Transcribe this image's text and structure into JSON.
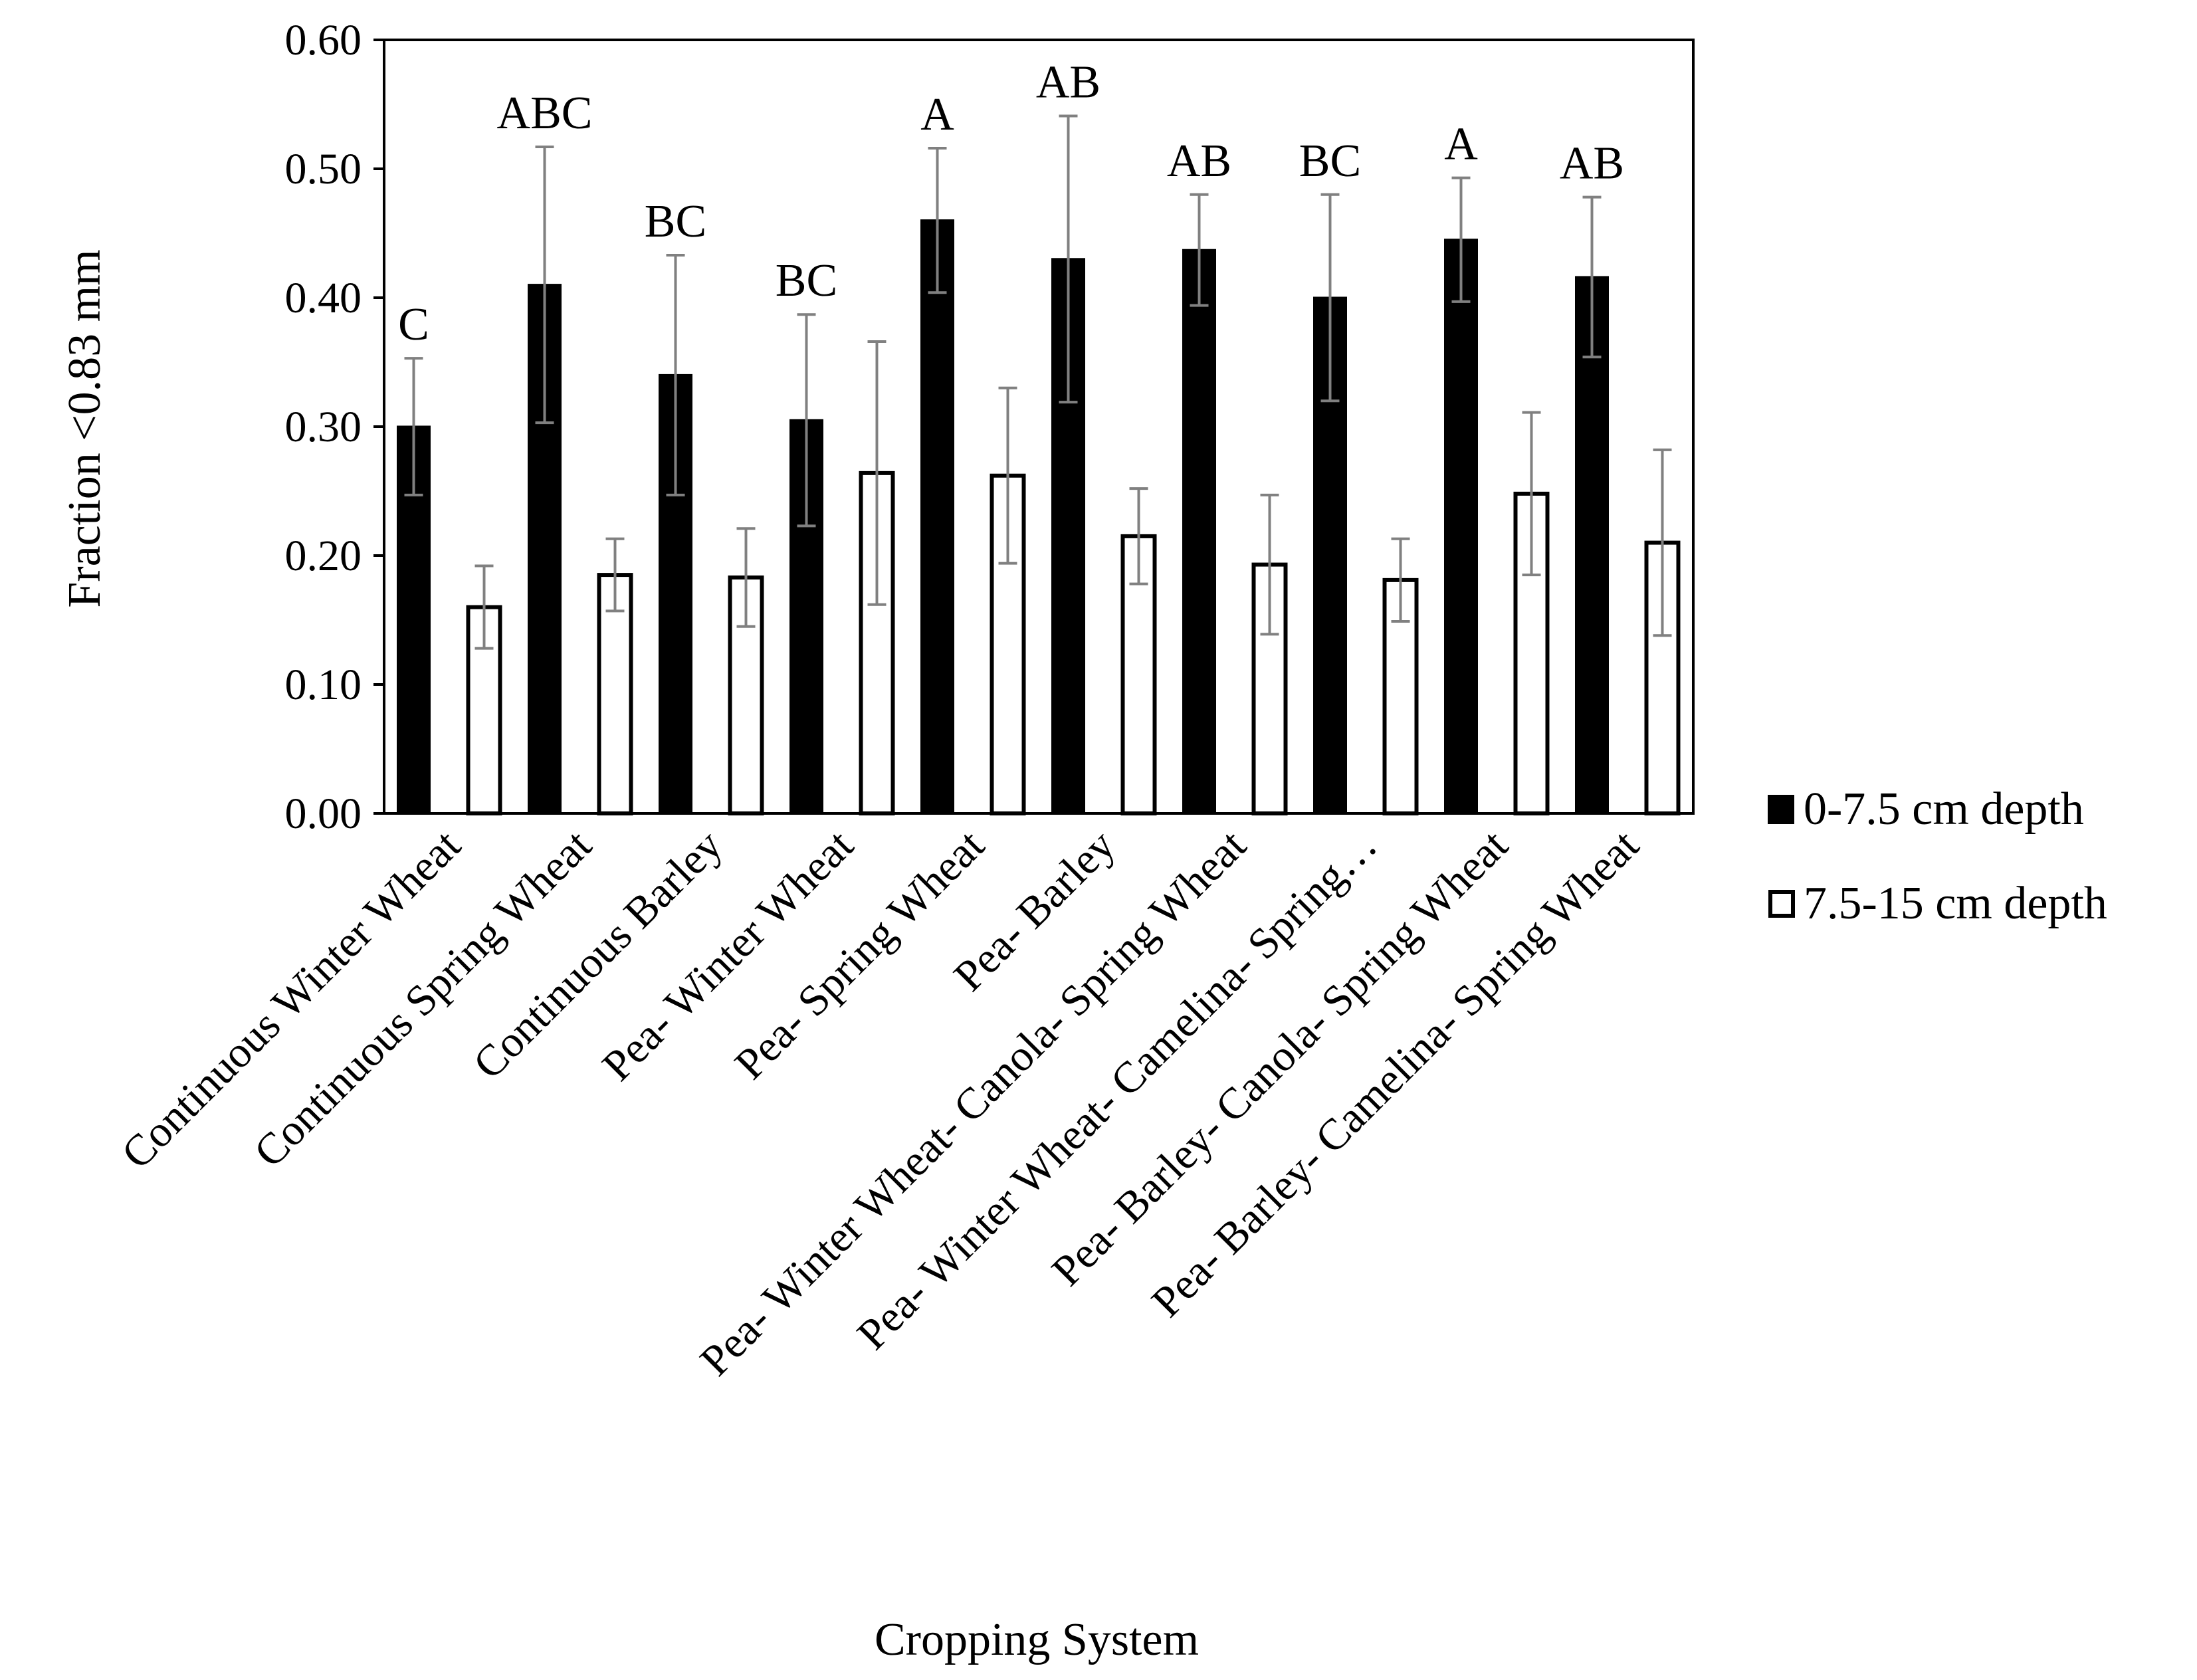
{
  "chart_data": {
    "type": "bar",
    "title": "",
    "xlabel": "Cropping System",
    "ylabel": "Fraction <0.83 mm",
    "ylim": [
      0,
      0.6
    ],
    "yticks": [
      "0.00",
      "0.10",
      "0.20",
      "0.30",
      "0.40",
      "0.50",
      "0.60"
    ],
    "grid": false,
    "legend_position": "right",
    "categories": [
      "Continuous Winter Wheat",
      "Continuous Spring Wheat",
      "Continuous Barley",
      "Pea- Winter Wheat",
      "Pea- Spring Wheat",
      "Pea- Barley",
      "Pea- Winter Wheat- Canola- Spring Wheat",
      "Pea- Winter Wheat- Camelina- Spring…",
      "Pea- Barley- Canola- Spring Wheat",
      "Pea- Barley- Camelina- Spring Wheat"
    ],
    "series": [
      {
        "name": "0-7.5 cm depth",
        "color": "#000000",
        "values": [
          0.3,
          0.41,
          0.34,
          0.305,
          0.46,
          0.43,
          0.437,
          0.4,
          0.445,
          0.416
        ],
        "error": [
          0.053,
          0.107,
          0.093,
          0.082,
          0.056,
          0.111,
          0.043,
          0.08,
          0.048,
          0.062
        ]
      },
      {
        "name": "7.5-15 cm depth",
        "color": "#ffffff",
        "values": [
          0.16,
          0.185,
          0.183,
          0.264,
          0.262,
          0.215,
          0.193,
          0.181,
          0.248,
          0.21
        ],
        "error": [
          0.032,
          0.028,
          0.038,
          0.102,
          0.068,
          0.037,
          0.054,
          0.032,
          0.063,
          0.072
        ]
      }
    ],
    "significance_letters": [
      "C",
      "ABC",
      "BC",
      "BC",
      "A",
      "AB",
      "AB",
      "BC",
      "A",
      "AB"
    ]
  }
}
